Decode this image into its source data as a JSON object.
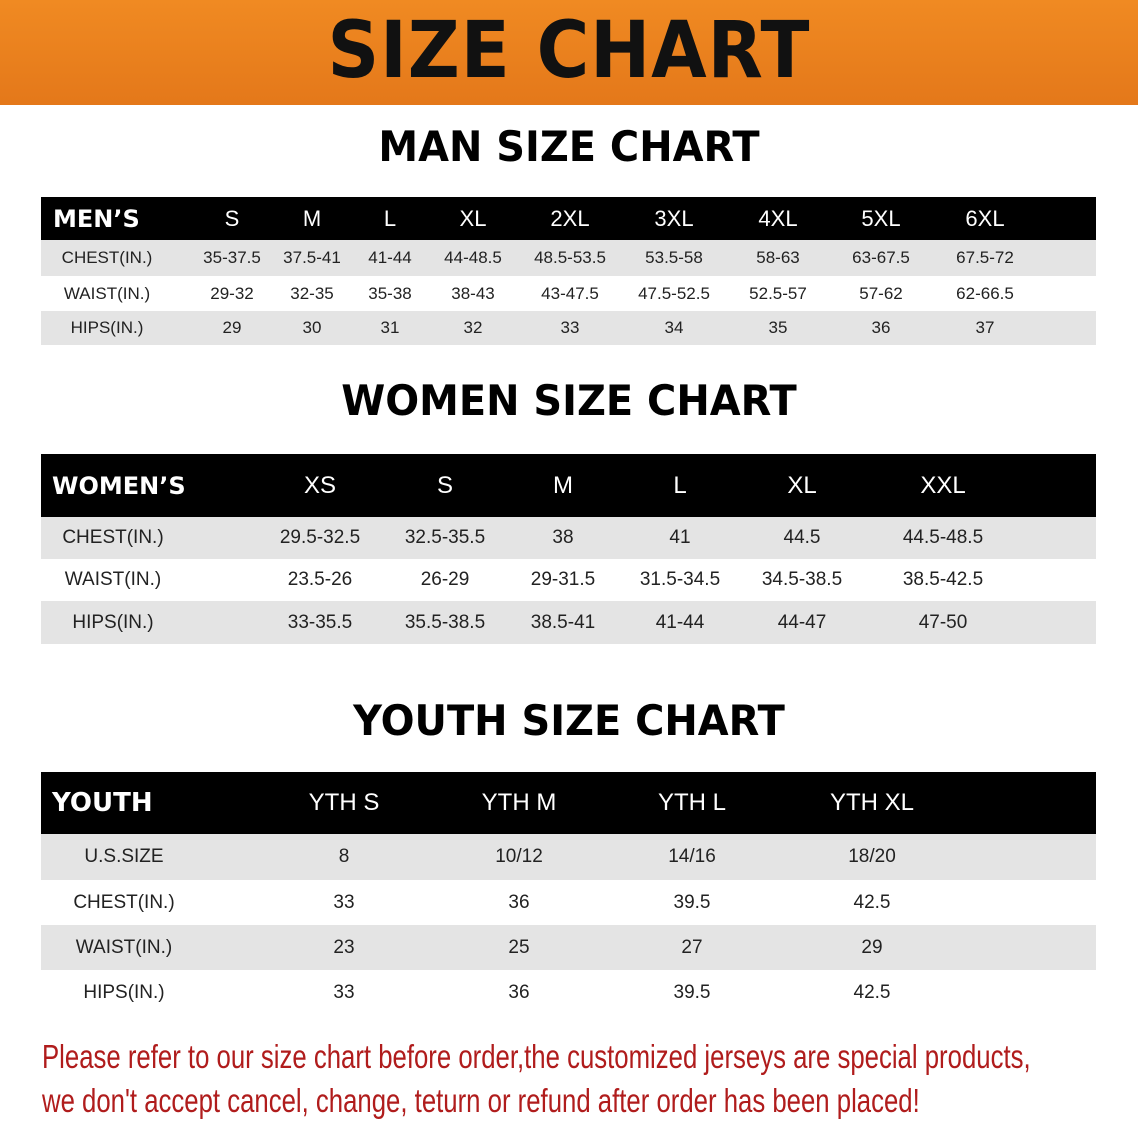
{
  "banner": {
    "title": "SIZE CHART",
    "color": "#e8801f"
  },
  "men": {
    "title": "MAN SIZE CHART",
    "header": [
      "MEN’S",
      "S",
      "M",
      "L",
      "XL",
      "2XL",
      "3XL",
      "4XL",
      "5XL",
      "6XL"
    ],
    "rows": [
      [
        "CHEST(IN.)",
        "35-37.5",
        "37.5-41",
        "41-44",
        "44-48.5",
        "48.5-53.5",
        "53.5-58",
        "58-63",
        "63-67.5",
        "67.5-72"
      ],
      [
        "WAIST(IN.)",
        "29-32",
        "32-35",
        "35-38",
        "38-43",
        "43-47.5",
        "47.5-52.5",
        "52.5-57",
        "57-62",
        "62-66.5"
      ],
      [
        "HIPS(IN.)",
        "29",
        "30",
        "31",
        "32",
        "33",
        "34",
        "35",
        "36",
        "37"
      ]
    ]
  },
  "women": {
    "title": "WOMEN SIZE CHART",
    "header": [
      "WOMEN’S",
      "XS",
      "S",
      "M",
      "L",
      "XL",
      "XXL"
    ],
    "rows": [
      [
        "CHEST(IN.)",
        "29.5-32.5",
        "32.5-35.5",
        "38",
        "41",
        "44.5",
        "44.5-48.5"
      ],
      [
        "WAIST(IN.)",
        "23.5-26",
        "26-29",
        "29-31.5",
        "31.5-34.5",
        "34.5-38.5",
        "38.5-42.5"
      ],
      [
        "HIPS(IN.)",
        "33-35.5",
        "35.5-38.5",
        "38.5-41",
        "41-44",
        "44-47",
        "47-50"
      ]
    ]
  },
  "youth": {
    "title": "YOUTH SIZE CHART",
    "header": [
      "YOUTH",
      "YTH S",
      "YTH M",
      "YTH L",
      "YTH XL"
    ],
    "rows": [
      [
        "U.S.SIZE",
        "8",
        "10/12",
        "14/16",
        "18/20"
      ],
      [
        "CHEST(IN.)",
        "33",
        "36",
        "39.5",
        "42.5"
      ],
      [
        "WAIST(IN.)",
        "23",
        "25",
        "27",
        "29"
      ],
      [
        "HIPS(IN.)",
        "33",
        "36",
        "39.5",
        "42.5"
      ]
    ]
  },
  "note": {
    "line1": "Please refer to our size chart before order,the customized jerseys are special products,",
    "line2": "we don't accept cancel, change, teturn or refund after order has been placed!",
    "color": "#b01c1c"
  }
}
